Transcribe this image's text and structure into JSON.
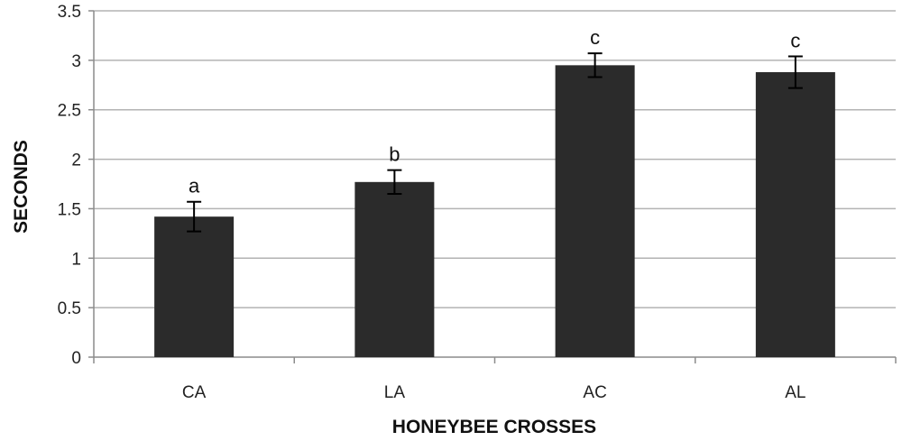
{
  "chart_data": {
    "type": "bar",
    "title": "",
    "xlabel": "HONEYBEE CROSSES",
    "ylabel": "SECONDS",
    "categories": [
      "CA",
      "LA",
      "AC",
      "AL"
    ],
    "values": [
      1.42,
      1.77,
      2.95,
      2.88
    ],
    "errors": [
      0.15,
      0.12,
      0.12,
      0.16
    ],
    "annotations": [
      "a",
      "b",
      "c",
      "c"
    ],
    "ylim": [
      0,
      3.5
    ],
    "yticks": [
      "0",
      "0.5",
      "1",
      "1.5",
      "2",
      "2.5",
      "3",
      "3.5"
    ],
    "grid": true,
    "legend": "none",
    "colors": {
      "bar": "#2b2b2b",
      "grid": "#b3b3b3",
      "axis": "#8c8c8c"
    }
  }
}
